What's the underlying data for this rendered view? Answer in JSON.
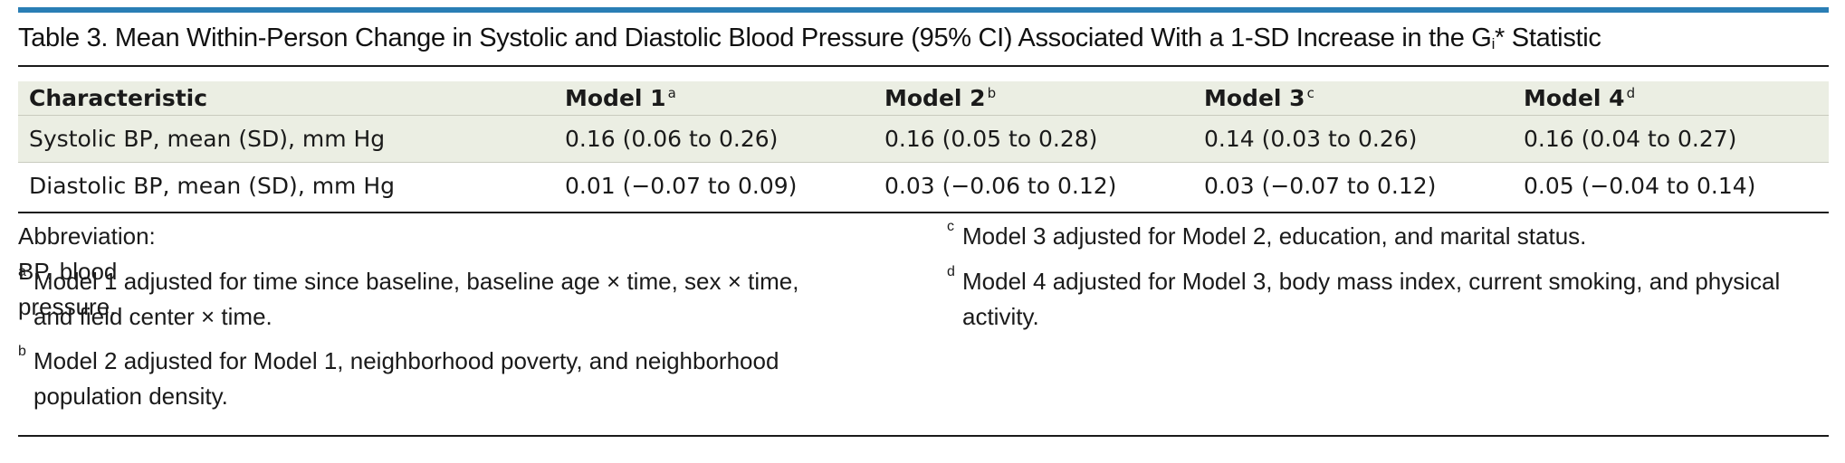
{
  "table": {
    "title_main": "Table 3. Mean Within-Person Change in Systolic and Diastolic Blood Pressure (95% CI) Associated With a 1-SD Increase in the G",
    "title_sub": "i",
    "title_end": "* Statistic",
    "headers": [
      {
        "label": "Characteristic",
        "sup": ""
      },
      {
        "label": "Model 1",
        "sup": "a"
      },
      {
        "label": "Model 2",
        "sup": "b"
      },
      {
        "label": "Model 3",
        "sup": "c"
      },
      {
        "label": "Model 4",
        "sup": "d"
      }
    ],
    "rows": [
      [
        "Systolic BP, mean (SD), mm Hg",
        "0.16 (0.06 to 0.26)",
        "0.16 (0.05 to 0.28)",
        "0.14 (0.03 to 0.26)",
        "0.16 (0.04 to 0.27)"
      ],
      [
        "Diastolic BP, mean (SD), mm Hg",
        "0.01 (−0.07 to 0.09)",
        "0.03 (−0.06 to 0.12)",
        "0.03 (−0.07 to 0.12)",
        "0.05 (−0.04 to 0.14)"
      ]
    ]
  },
  "footnotes": {
    "abbreviation": "Abbreviation: BP, blood pressure.",
    "a": {
      "mark": "a",
      "line1": "Model 1 adjusted for time since baseline, baseline age × time, sex × time,",
      "line2": "and field center × time."
    },
    "b": {
      "mark": "b",
      "line1": "Model 2 adjusted for Model 1, neighborhood poverty, and neighborhood",
      "line2": "population density."
    },
    "c": {
      "mark": "c",
      "line1": "Model 3 adjusted for Model 2, education, and marital status."
    },
    "d": {
      "mark": "d",
      "line1": "Model 4 adjusted for Model 3, body mass index, current smoking, and physical",
      "line2": "activity."
    }
  },
  "colors": {
    "accent_bar": "#2a7eb5",
    "row_shade": "#ebeee3"
  }
}
